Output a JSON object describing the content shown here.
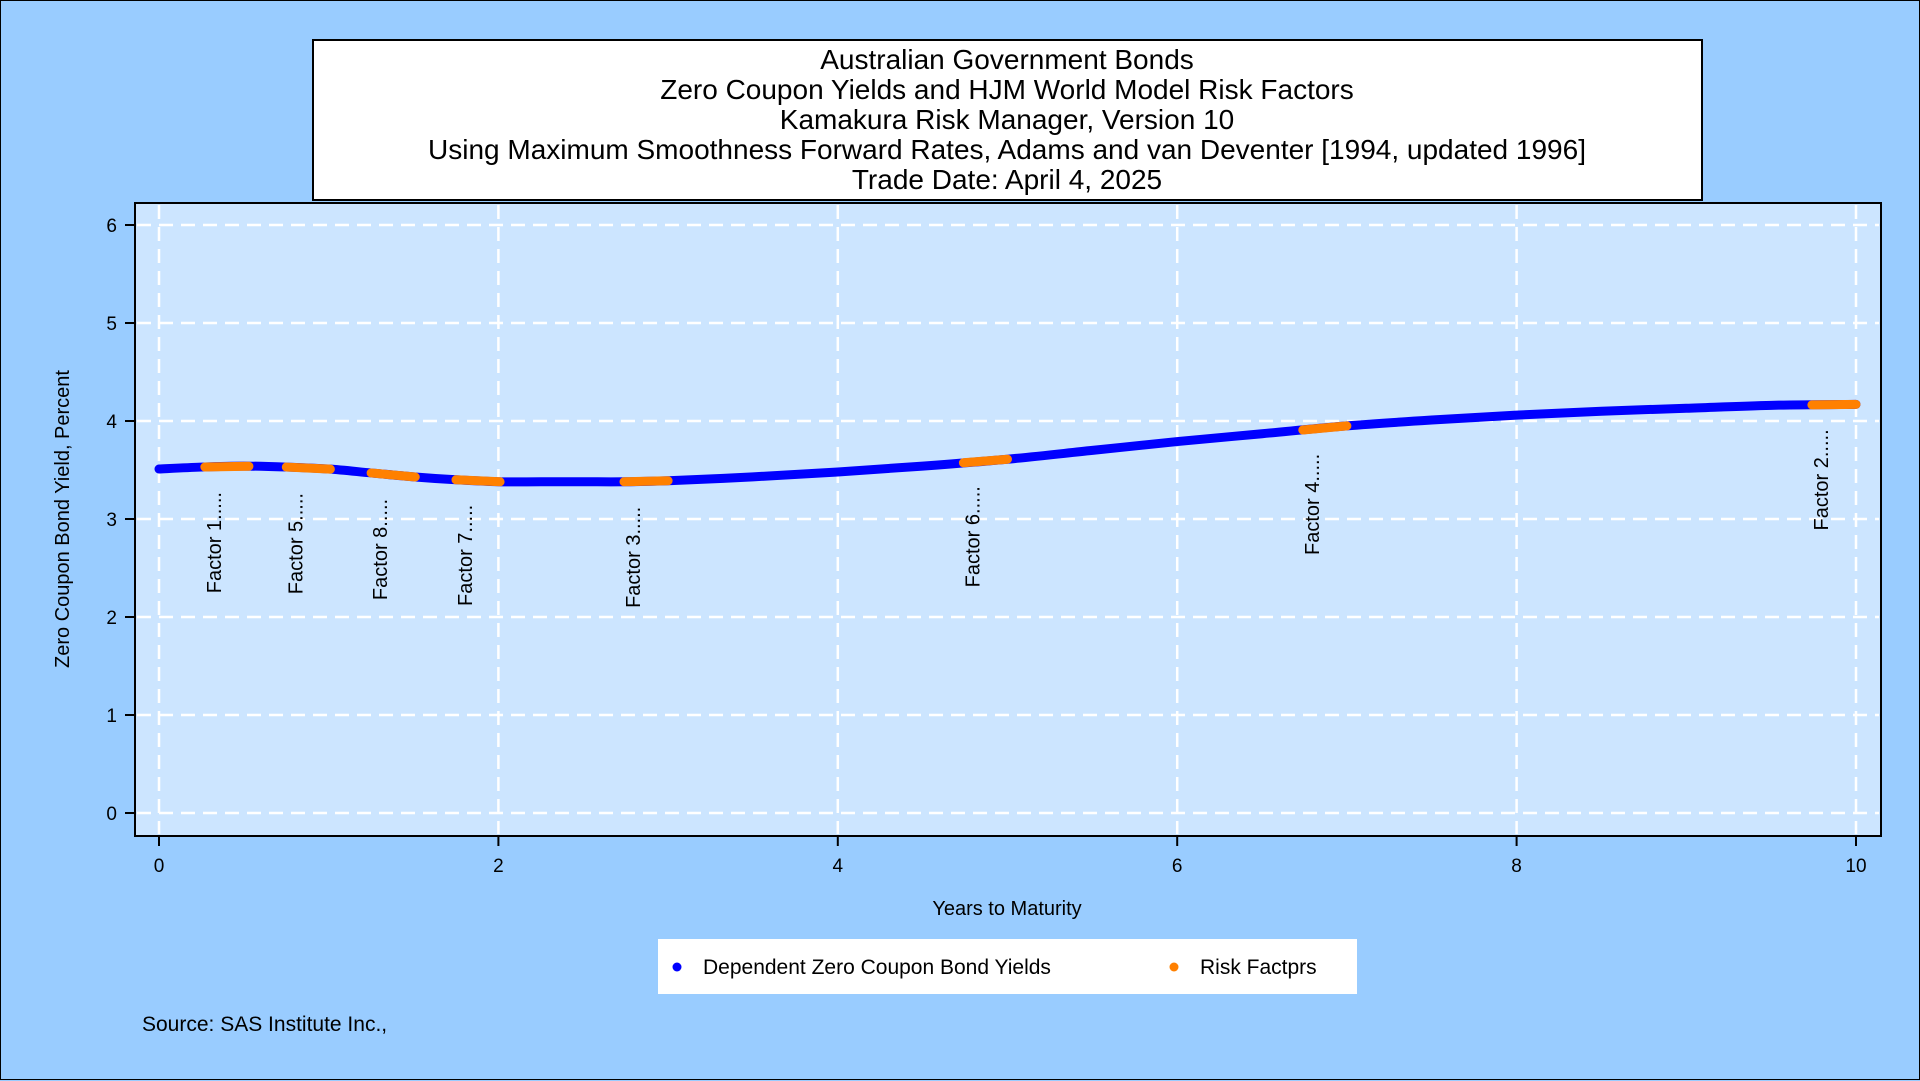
{
  "chart_data": {
    "type": "line",
    "title_lines": [
      "Australian Government Bonds",
      "Zero Coupon Yields and HJM World Model Risk Factors",
      "Kamakura Risk Manager, Version 10",
      "Using Maximum Smoothness Forward Rates, Adams and van Deventer [1994, updated 1996]",
      "Trade Date: April 4, 2025"
    ],
    "xlabel": "Years to Maturity",
    "ylabel": "Zero Coupon Bond Yield, Percent",
    "xlim": [
      0,
      10
    ],
    "ylim": [
      0,
      6
    ],
    "xticks": [
      0,
      2,
      4,
      6,
      8,
      10
    ],
    "yticks": [
      0,
      1,
      2,
      3,
      4,
      5,
      6
    ],
    "grid": true,
    "legend_placement": "bottom",
    "colors": {
      "background": "#99ccff",
      "plot_background": "#cce5ff",
      "yield_curve": "#0000ff",
      "risk_factor": "#ff8000",
      "grid": "#ffffff"
    },
    "series": [
      {
        "name": "Dependent Zero Coupon Bond Yields",
        "x": [
          0,
          0.25,
          0.5,
          0.75,
          1.0,
          1.25,
          1.5,
          1.75,
          2.0,
          2.25,
          2.5,
          2.75,
          3.0,
          3.5,
          4.0,
          4.5,
          5.0,
          5.5,
          6.0,
          6.5,
          7.0,
          7.5,
          8.0,
          8.5,
          9.0,
          9.5,
          10.0
        ],
        "y": [
          3.51,
          3.53,
          3.54,
          3.53,
          3.51,
          3.47,
          3.43,
          3.4,
          3.38,
          3.38,
          3.38,
          3.38,
          3.39,
          3.43,
          3.48,
          3.54,
          3.61,
          3.7,
          3.79,
          3.87,
          3.95,
          4.01,
          4.06,
          4.1,
          4.13,
          4.16,
          4.17
        ]
      },
      {
        "name": "Risk Factprs",
        "points": [
          {
            "label": "Factor 1.....",
            "x": 0.4,
            "y": 3.53
          },
          {
            "label": "Factor 5.....",
            "x": 0.88,
            "y": 3.52
          },
          {
            "label": "Factor 8.....",
            "x": 1.38,
            "y": 3.46
          },
          {
            "label": "Factor 7.....",
            "x": 1.88,
            "y": 3.4
          },
          {
            "label": "Factor 3.....",
            "x": 2.87,
            "y": 3.38
          },
          {
            "label": "Factor 6.....",
            "x": 4.87,
            "y": 3.59
          },
          {
            "label": "Factor 4.....",
            "x": 6.87,
            "y": 3.92
          },
          {
            "label": "Factor 2.....",
            "x": 9.87,
            "y": 4.17
          }
        ]
      }
    ],
    "legend": [
      {
        "label": "Dependent Zero Coupon Bond Yields"
      },
      {
        "label": "Risk Factprs"
      }
    ],
    "source": "Source: SAS Institute Inc.,"
  }
}
